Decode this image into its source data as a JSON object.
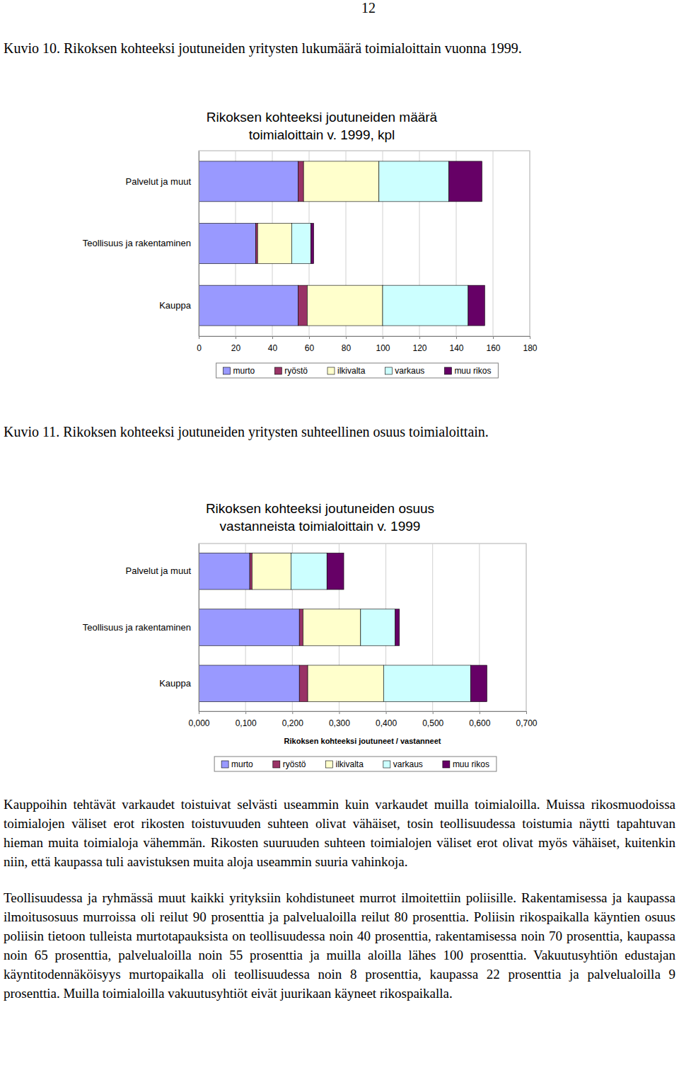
{
  "page_number": "12",
  "figure_captions": [
    "Kuvio 10. Rikoksen kohteeksi joutuneiden yritysten lukumäärä toimialoittain vuonna 1999.",
    "Kuvio 11. Rikoksen kohteeksi joutuneiden yritysten suhteellinen osuus toimialoittain."
  ],
  "chart_data": [
    {
      "type": "bar",
      "orientation": "horizontal",
      "stacked": true,
      "title": "Rikoksen kohteeksi joutuneiden määrä toimialoittain v. 1999, kpl",
      "categories": [
        "Palvelut ja muut",
        "Teollisuus ja rakentaminen",
        "Kauppa"
      ],
      "series": [
        {
          "name": "murto",
          "color": "#9999ff",
          "values": [
            54,
            31,
            54
          ]
        },
        {
          "name": "ryöstö",
          "color": "#993366",
          "values": [
            3,
            1,
            5
          ]
        },
        {
          "name": "ilkivalta",
          "color": "#ffffcc",
          "values": [
            41,
            18.5,
            41
          ]
        },
        {
          "name": "varkaus",
          "color": "#ccffff",
          "values": [
            38,
            10.5,
            46.5
          ]
        },
        {
          "name": "muu rikos",
          "color": "#660066",
          "values": [
            18,
            1.5,
            9
          ]
        }
      ],
      "xlim": [
        0,
        180
      ],
      "xticks": [
        0,
        20,
        40,
        60,
        80,
        100,
        120,
        140,
        160,
        180
      ],
      "grid": true,
      "legend": "bottom"
    },
    {
      "type": "bar",
      "orientation": "horizontal",
      "stacked": true,
      "title": "Rikoksen kohteeksi joutuneiden osuus vastanneista toimialoittain v. 1999",
      "x_label": "Rikoksen kohteeksi joutuneet / vastanneet",
      "categories": [
        "Palvelut ja muut",
        "Teollisuus ja rakentaminen",
        "Kauppa"
      ],
      "series": [
        {
          "name": "murto",
          "color": "#9999ff",
          "values": [
            0.109,
            0.215,
            0.215
          ]
        },
        {
          "name": "ryöstö",
          "color": "#993366",
          "values": [
            0.005,
            0.008,
            0.018
          ]
        },
        {
          "name": "ilkivalta",
          "color": "#ffffcc",
          "values": [
            0.083,
            0.123,
            0.162
          ]
        },
        {
          "name": "varkaus",
          "color": "#ccffff",
          "values": [
            0.077,
            0.074,
            0.186
          ]
        },
        {
          "name": "muu rikos",
          "color": "#660066",
          "values": [
            0.036,
            0.009,
            0.035
          ]
        }
      ],
      "xlim": [
        0,
        0.7
      ],
      "xticks": [
        {
          "value": 0,
          "label": "0,000"
        },
        {
          "value": 0.1,
          "label": "0,100"
        },
        {
          "value": 0.2,
          "label": "0,200"
        },
        {
          "value": 0.3,
          "label": "0,300"
        },
        {
          "value": 0.4,
          "label": "0,400"
        },
        {
          "value": 0.5,
          "label": "0,500"
        },
        {
          "value": 0.6,
          "label": "0,600"
        },
        {
          "value": 0.7,
          "label": "0,700"
        }
      ],
      "grid": true,
      "legend": "bottom"
    }
  ],
  "paragraphs": [
    "Kauppoihin tehtävät varkaudet toistuivat selvästi useammin kuin varkaudet muilla toimialoilla. Muissa rikosmuodoissa toimialojen väliset erot rikosten toistuvuuden suhteen olivat vähäiset, tosin teollisuudessa toistumia näytti tapahtuvan hieman muita toimialoja vähemmän. Rikosten suuruuden suhteen toimialojen väliset erot olivat myös vähäiset, kuitenkin niin, että kaupassa tuli aavistuksen muita aloja useammin suuria vahinkoja.",
    "Teollisuudessa ja ryhmässä muut kaikki yrityksiin kohdistuneet murrot ilmoitettiin poliisille. Rakentamisessa ja kaupassa ilmoitusosuus murroissa oli reilut 90 prosenttia ja palvelualoilla reilut 80 prosenttia. Poliisin rikospaikalla käyntien osuus poliisin tietoon tulleista murtotapauksista on teollisuudessa noin 40 prosenttia, rakentamisessa noin 70 prosenttia, kaupassa noin 65 prosenttia, palvelualoilla noin 55 prosenttia ja muilla aloilla lähes 100 prosenttia. Vakuutusyhtiön edustajan käyntitodennäköisyys murtopaikalla oli teollisuudessa noin 8 prosenttia, kaupassa 22 prosenttia ja palvelualoilla 9 prosenttia. Muilla toimialoilla vakuutusyhtiöt eivät juurikaan käyneet rikospaikalla."
  ]
}
